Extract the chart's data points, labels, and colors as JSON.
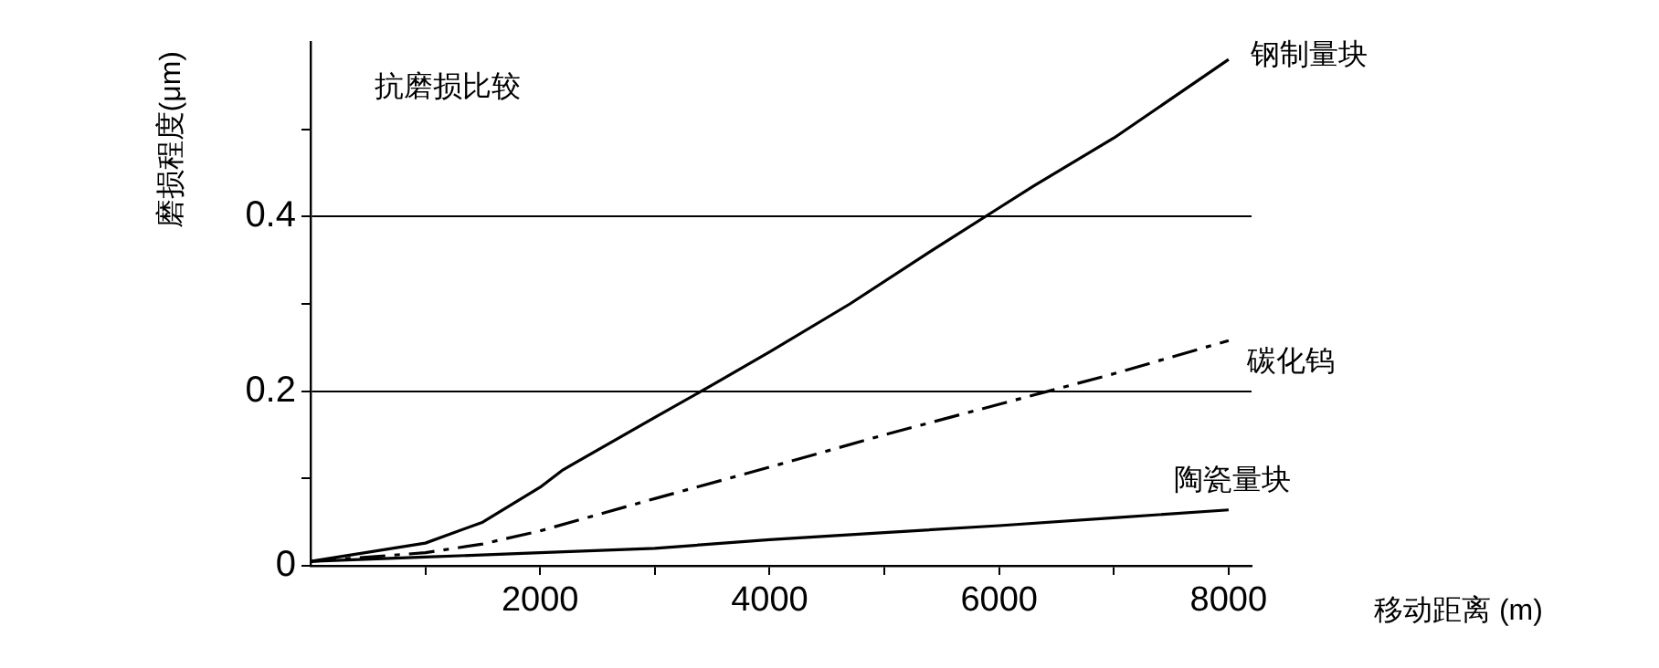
{
  "chart_data": {
    "type": "line",
    "title": "抗磨损比较",
    "xlabel": "移动距离 (m)",
    "ylabel": "磨损程度(μm)",
    "xlim": [
      0,
      8200
    ],
    "xticks": [
      {
        "value": 1000,
        "label": null
      },
      2000,
      {
        "value": 3000,
        "label": null
      },
      4000,
      {
        "value": 5000,
        "label": null
      },
      6000,
      {
        "value": 7000,
        "label": null
      },
      8000
    ],
    "ylim": [
      0,
      0.6
    ],
    "yticks": [
      0,
      {
        "value": 0.1,
        "label": null
      },
      0.2,
      {
        "value": 0.3,
        "label": null
      },
      0.4,
      {
        "value": 0.5,
        "label": null
      }
    ],
    "grid": "y",
    "legend": false,
    "marker": "none",
    "series": [
      {
        "name": "钢制量块",
        "color": "#000000",
        "line_style": "solid",
        "x": [
          0,
          1000,
          1500,
          2000,
          2200,
          3000,
          3500,
          4000,
          4700,
          5400,
          6000,
          6300,
          7000,
          8000
        ],
        "values": [
          0.005,
          0.026,
          0.05,
          0.09,
          0.11,
          0.17,
          0.207,
          0.245,
          0.3,
          0.36,
          0.41,
          0.435,
          0.49,
          0.58
        ]
      },
      {
        "name": "碳化钨",
        "color": "#000000",
        "line_style": "dashed",
        "x": [
          0,
          1000,
          1500,
          2000,
          3000,
          4000,
          5000,
          6000,
          7000,
          8000
        ],
        "values": [
          0.005,
          0.015,
          0.025,
          0.04,
          0.077,
          0.113,
          0.15,
          0.185,
          0.22,
          0.258
        ]
      },
      {
        "name": "陶瓷量块",
        "color": "#000000",
        "line_style": "solid",
        "x": [
          0,
          1000,
          2000,
          3000,
          4000,
          5000,
          6000,
          7000,
          8000
        ],
        "values": [
          0.005,
          0.01,
          0.015,
          0.02,
          0.03,
          0.038,
          0.046,
          0.055,
          0.064
        ]
      }
    ]
  }
}
